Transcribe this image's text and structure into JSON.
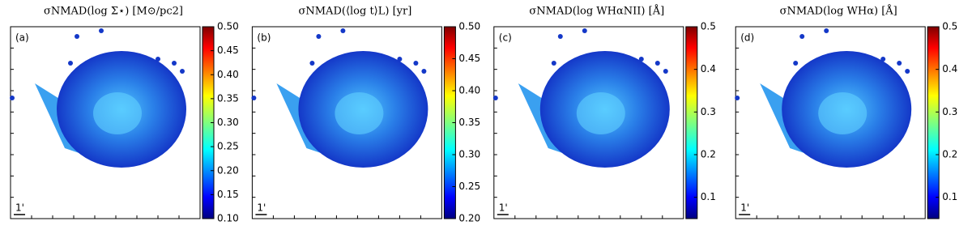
{
  "chart_data": [
    {
      "type": "map",
      "title": "σNMAD(log Σ⋆) [M⊙/pc2]",
      "panel_label": "(a)",
      "scale_label": "1'",
      "clim": [
        0.1,
        0.5
      ],
      "cticks": [
        {
          "value": 0.1,
          "label": "0.10"
        },
        {
          "value": 0.15,
          "label": "0.15"
        },
        {
          "value": 0.2,
          "label": "0.20"
        },
        {
          "value": 0.25,
          "label": "0.25"
        },
        {
          "value": 0.3,
          "label": "0.30"
        },
        {
          "value": 0.35,
          "label": "0.35"
        },
        {
          "value": 0.4,
          "label": "0.40"
        },
        {
          "value": 0.45,
          "label": "0.45"
        },
        {
          "value": 0.5,
          "label": "0.50"
        }
      ]
    },
    {
      "type": "map",
      "title": "σNMAD(⟨log t⟩L) [yr]",
      "panel_label": "(b)",
      "scale_label": "1'",
      "clim": [
        0.2,
        0.5
      ],
      "cticks": [
        {
          "value": 0.2,
          "label": "0.20"
        },
        {
          "value": 0.25,
          "label": "0.25"
        },
        {
          "value": 0.3,
          "label": "0.30"
        },
        {
          "value": 0.35,
          "label": "0.35"
        },
        {
          "value": 0.4,
          "label": "0.40"
        },
        {
          "value": 0.45,
          "label": "0.45"
        },
        {
          "value": 0.5,
          "label": "0.50"
        }
      ]
    },
    {
      "type": "map",
      "title": "σNMAD(log WHαNII) [Å]",
      "panel_label": "(c)",
      "scale_label": "1'",
      "clim": [
        0.05,
        0.5
      ],
      "cticks": [
        0.1,
        0.2,
        0.3,
        0.4,
        0.5
      ]
    },
    {
      "type": "map",
      "title": "σNMAD(log WHα) [Å]",
      "panel_label": "(d)",
      "scale_label": "1'",
      "clim": [
        0.05,
        0.5
      ],
      "cticks": [
        0.1,
        0.2,
        0.3,
        0.4,
        0.5
      ]
    }
  ]
}
